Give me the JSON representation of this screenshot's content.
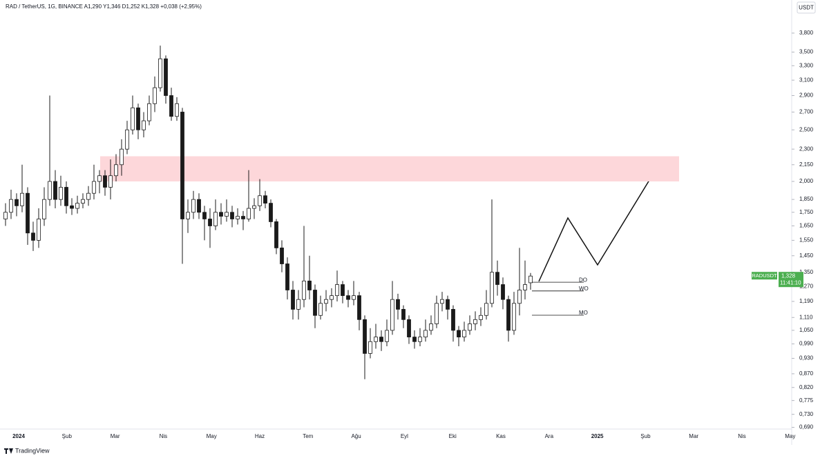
{
  "chart_data": {
    "type": "candlestick",
    "title": "RAD / TetherUS, 1G, BINANCE  A1,290 Y1,346 D1,252 K1,328 +0,038 (+2,95%)",
    "currency": "USDT",
    "log_scale": true,
    "ylim": [
      0.685,
      4.385
    ],
    "yticks": [
      {
        "value": 3.8,
        "label": "3,800"
      },
      {
        "value": 3.5,
        "label": "3,500"
      },
      {
        "value": 3.3,
        "label": "3,300"
      },
      {
        "value": 3.1,
        "label": "3,100"
      },
      {
        "value": 2.9,
        "label": "2,900"
      },
      {
        "value": 2.7,
        "label": "2,700"
      },
      {
        "value": 2.5,
        "label": "2,500"
      },
      {
        "value": 2.3,
        "label": "2,300"
      },
      {
        "value": 2.15,
        "label": "2,150"
      },
      {
        "value": 2.0,
        "label": "2,000"
      },
      {
        "value": 1.85,
        "label": "1,850"
      },
      {
        "value": 1.75,
        "label": "1,750"
      },
      {
        "value": 1.65,
        "label": "1,650"
      },
      {
        "value": 1.55,
        "label": "1,550"
      },
      {
        "value": 1.45,
        "label": "1,450"
      },
      {
        "value": 1.35,
        "label": "1,350"
      },
      {
        "value": 1.27,
        "label": "1,270"
      },
      {
        "value": 1.19,
        "label": "1,190"
      },
      {
        "value": 1.11,
        "label": "1,110"
      },
      {
        "value": 1.05,
        "label": "1,050"
      },
      {
        "value": 0.99,
        "label": "0,990"
      },
      {
        "value": 0.93,
        "label": "0,930"
      },
      {
        "value": 0.87,
        "label": "0,870"
      },
      {
        "value": 0.82,
        "label": "0,820"
      },
      {
        "value": 0.775,
        "label": "0,775"
      },
      {
        "value": 0.73,
        "label": "0,730"
      },
      {
        "value": 0.69,
        "label": "0,690"
      }
    ],
    "xticks": [
      "2024",
      "Şub",
      "Mar",
      "Nis",
      "May",
      "Haz",
      "Tem",
      "Ağu",
      "Eyl",
      "Eki",
      "Kas",
      "Ara",
      "2025",
      "Şub",
      "Mar",
      "Nis",
      "May"
    ],
    "up_color": "#ffffff",
    "down_color": "#1a1a1a",
    "candles": [
      [
        1.7,
        1.82,
        1.65,
        1.75
      ],
      [
        1.75,
        1.93,
        1.7,
        1.85
      ],
      [
        1.85,
        1.9,
        1.72,
        1.8
      ],
      [
        1.8,
        2.15,
        1.75,
        1.9
      ],
      [
        1.9,
        1.95,
        1.52,
        1.6
      ],
      [
        1.6,
        1.68,
        1.48,
        1.55
      ],
      [
        1.55,
        1.78,
        1.5,
        1.7
      ],
      [
        1.7,
        1.95,
        1.65,
        1.85
      ],
      [
        1.85,
        2.9,
        1.8,
        2.0
      ],
      [
        2.0,
        2.1,
        1.78,
        1.85
      ],
      [
        1.85,
        2.05,
        1.8,
        1.95
      ],
      [
        1.95,
        2.0,
        1.74,
        1.8
      ],
      [
        1.8,
        1.86,
        1.73,
        1.78
      ],
      [
        1.78,
        1.88,
        1.74,
        1.82
      ],
      [
        1.82,
        1.9,
        1.78,
        1.85
      ],
      [
        1.85,
        1.96,
        1.8,
        1.9
      ],
      [
        1.9,
        2.15,
        1.85,
        2.0
      ],
      [
        2.0,
        2.1,
        1.9,
        2.05
      ],
      [
        2.05,
        2.1,
        1.88,
        1.95
      ],
      [
        1.95,
        2.2,
        1.85,
        2.05
      ],
      [
        2.05,
        2.25,
        2.0,
        2.15
      ],
      [
        2.15,
        2.4,
        2.05,
        2.3
      ],
      [
        2.3,
        2.6,
        2.25,
        2.5
      ],
      [
        2.5,
        2.9,
        2.45,
        2.75
      ],
      [
        2.75,
        2.8,
        2.4,
        2.5
      ],
      [
        2.5,
        2.7,
        2.42,
        2.6
      ],
      [
        2.6,
        2.9,
        2.55,
        2.8
      ],
      [
        2.8,
        3.15,
        2.7,
        3.0
      ],
      [
        3.0,
        3.6,
        2.95,
        3.4
      ],
      [
        3.4,
        3.45,
        2.8,
        2.9
      ],
      [
        2.9,
        3.0,
        2.6,
        2.65
      ],
      [
        2.65,
        2.88,
        2.6,
        2.8
      ],
      [
        2.7,
        2.75,
        1.4,
        1.7
      ],
      [
        1.7,
        1.85,
        1.6,
        1.75
      ],
      [
        1.75,
        1.92,
        1.7,
        1.85
      ],
      [
        1.85,
        1.9,
        1.7,
        1.75
      ],
      [
        1.75,
        1.8,
        1.55,
        1.7
      ],
      [
        1.7,
        1.78,
        1.5,
        1.65
      ],
      [
        1.65,
        1.85,
        1.62,
        1.75
      ],
      [
        1.75,
        1.82,
        1.66,
        1.72
      ],
      [
        1.72,
        1.85,
        1.68,
        1.75
      ],
      [
        1.75,
        1.8,
        1.64,
        1.7
      ],
      [
        1.7,
        1.78,
        1.66,
        1.72
      ],
      [
        1.72,
        1.76,
        1.62,
        1.7
      ],
      [
        1.7,
        2.1,
        1.68,
        1.78
      ],
      [
        1.78,
        1.86,
        1.7,
        1.8
      ],
      [
        1.8,
        2.02,
        1.76,
        1.88
      ],
      [
        1.88,
        1.92,
        1.78,
        1.82
      ],
      [
        1.82,
        1.85,
        1.64,
        1.68
      ],
      [
        1.68,
        1.7,
        1.46,
        1.5
      ],
      [
        1.5,
        1.55,
        1.35,
        1.4
      ],
      [
        1.4,
        1.44,
        1.2,
        1.25
      ],
      [
        1.25,
        1.3,
        1.1,
        1.15
      ],
      [
        1.15,
        1.25,
        1.1,
        1.2
      ],
      [
        1.2,
        1.65,
        1.16,
        1.3
      ],
      [
        1.3,
        1.45,
        1.2,
        1.25
      ],
      [
        1.25,
        1.28,
        1.06,
        1.12
      ],
      [
        1.12,
        1.22,
        1.1,
        1.18
      ],
      [
        1.18,
        1.25,
        1.14,
        1.2
      ],
      [
        1.2,
        1.26,
        1.16,
        1.22
      ],
      [
        1.22,
        1.36,
        1.19,
        1.28
      ],
      [
        1.28,
        1.3,
        1.18,
        1.22
      ],
      [
        1.22,
        1.25,
        1.16,
        1.2
      ],
      [
        1.2,
        1.3,
        1.17,
        1.22
      ],
      [
        1.22,
        1.24,
        1.05,
        1.1
      ],
      [
        1.1,
        1.12,
        0.85,
        0.95
      ],
      [
        0.95,
        1.06,
        0.93,
        1.0
      ],
      [
        1.0,
        1.08,
        0.97,
        1.02
      ],
      [
        1.02,
        1.05,
        0.96,
        1.0
      ],
      [
        1.0,
        1.1,
        0.98,
        1.05
      ],
      [
        1.05,
        1.3,
        1.03,
        1.2
      ],
      [
        1.2,
        1.23,
        1.1,
        1.15
      ],
      [
        1.15,
        1.17,
        1.06,
        1.1
      ],
      [
        1.1,
        1.12,
        0.99,
        1.02
      ],
      [
        1.02,
        1.05,
        0.97,
        1.0
      ],
      [
        1.0,
        1.06,
        0.98,
        1.02
      ],
      [
        1.02,
        1.1,
        1.0,
        1.05
      ],
      [
        1.05,
        1.12,
        1.03,
        1.08
      ],
      [
        1.08,
        1.22,
        1.06,
        1.18
      ],
      [
        1.18,
        1.24,
        1.14,
        1.2
      ],
      [
        1.2,
        1.22,
        1.1,
        1.15
      ],
      [
        1.15,
        1.17,
        1.0,
        1.05
      ],
      [
        1.05,
        1.07,
        0.98,
        1.02
      ],
      [
        1.02,
        1.09,
        1.0,
        1.05
      ],
      [
        1.05,
        1.12,
        1.03,
        1.08
      ],
      [
        1.08,
        1.14,
        1.05,
        1.1
      ],
      [
        1.1,
        1.16,
        1.07,
        1.12
      ],
      [
        1.12,
        1.25,
        1.1,
        1.18
      ],
      [
        1.18,
        1.85,
        1.16,
        1.35
      ],
      [
        1.35,
        1.42,
        1.22,
        1.28
      ],
      [
        1.28,
        1.32,
        1.15,
        1.2
      ],
      [
        1.2,
        1.22,
        1.0,
        1.05
      ],
      [
        1.05,
        1.24,
        1.03,
        1.18
      ],
      [
        1.18,
        1.5,
        1.12,
        1.25
      ],
      [
        1.25,
        1.42,
        1.2,
        1.28
      ],
      [
        1.29,
        1.346,
        1.252,
        1.328
      ]
    ],
    "zone": {
      "low": 2.0,
      "high": 2.23,
      "color": "#fdd7da"
    },
    "levels": [
      {
        "label": "DO",
        "value": 1.293
      },
      {
        "label": "WO",
        "value": 1.245
      },
      {
        "label": "MO",
        "value": 1.121
      }
    ],
    "price_tag": {
      "symbol": "RADUSDT",
      "price": "1,328",
      "countdown": "11:41:10",
      "color": "#4caf50"
    },
    "brand": "TradingView"
  }
}
